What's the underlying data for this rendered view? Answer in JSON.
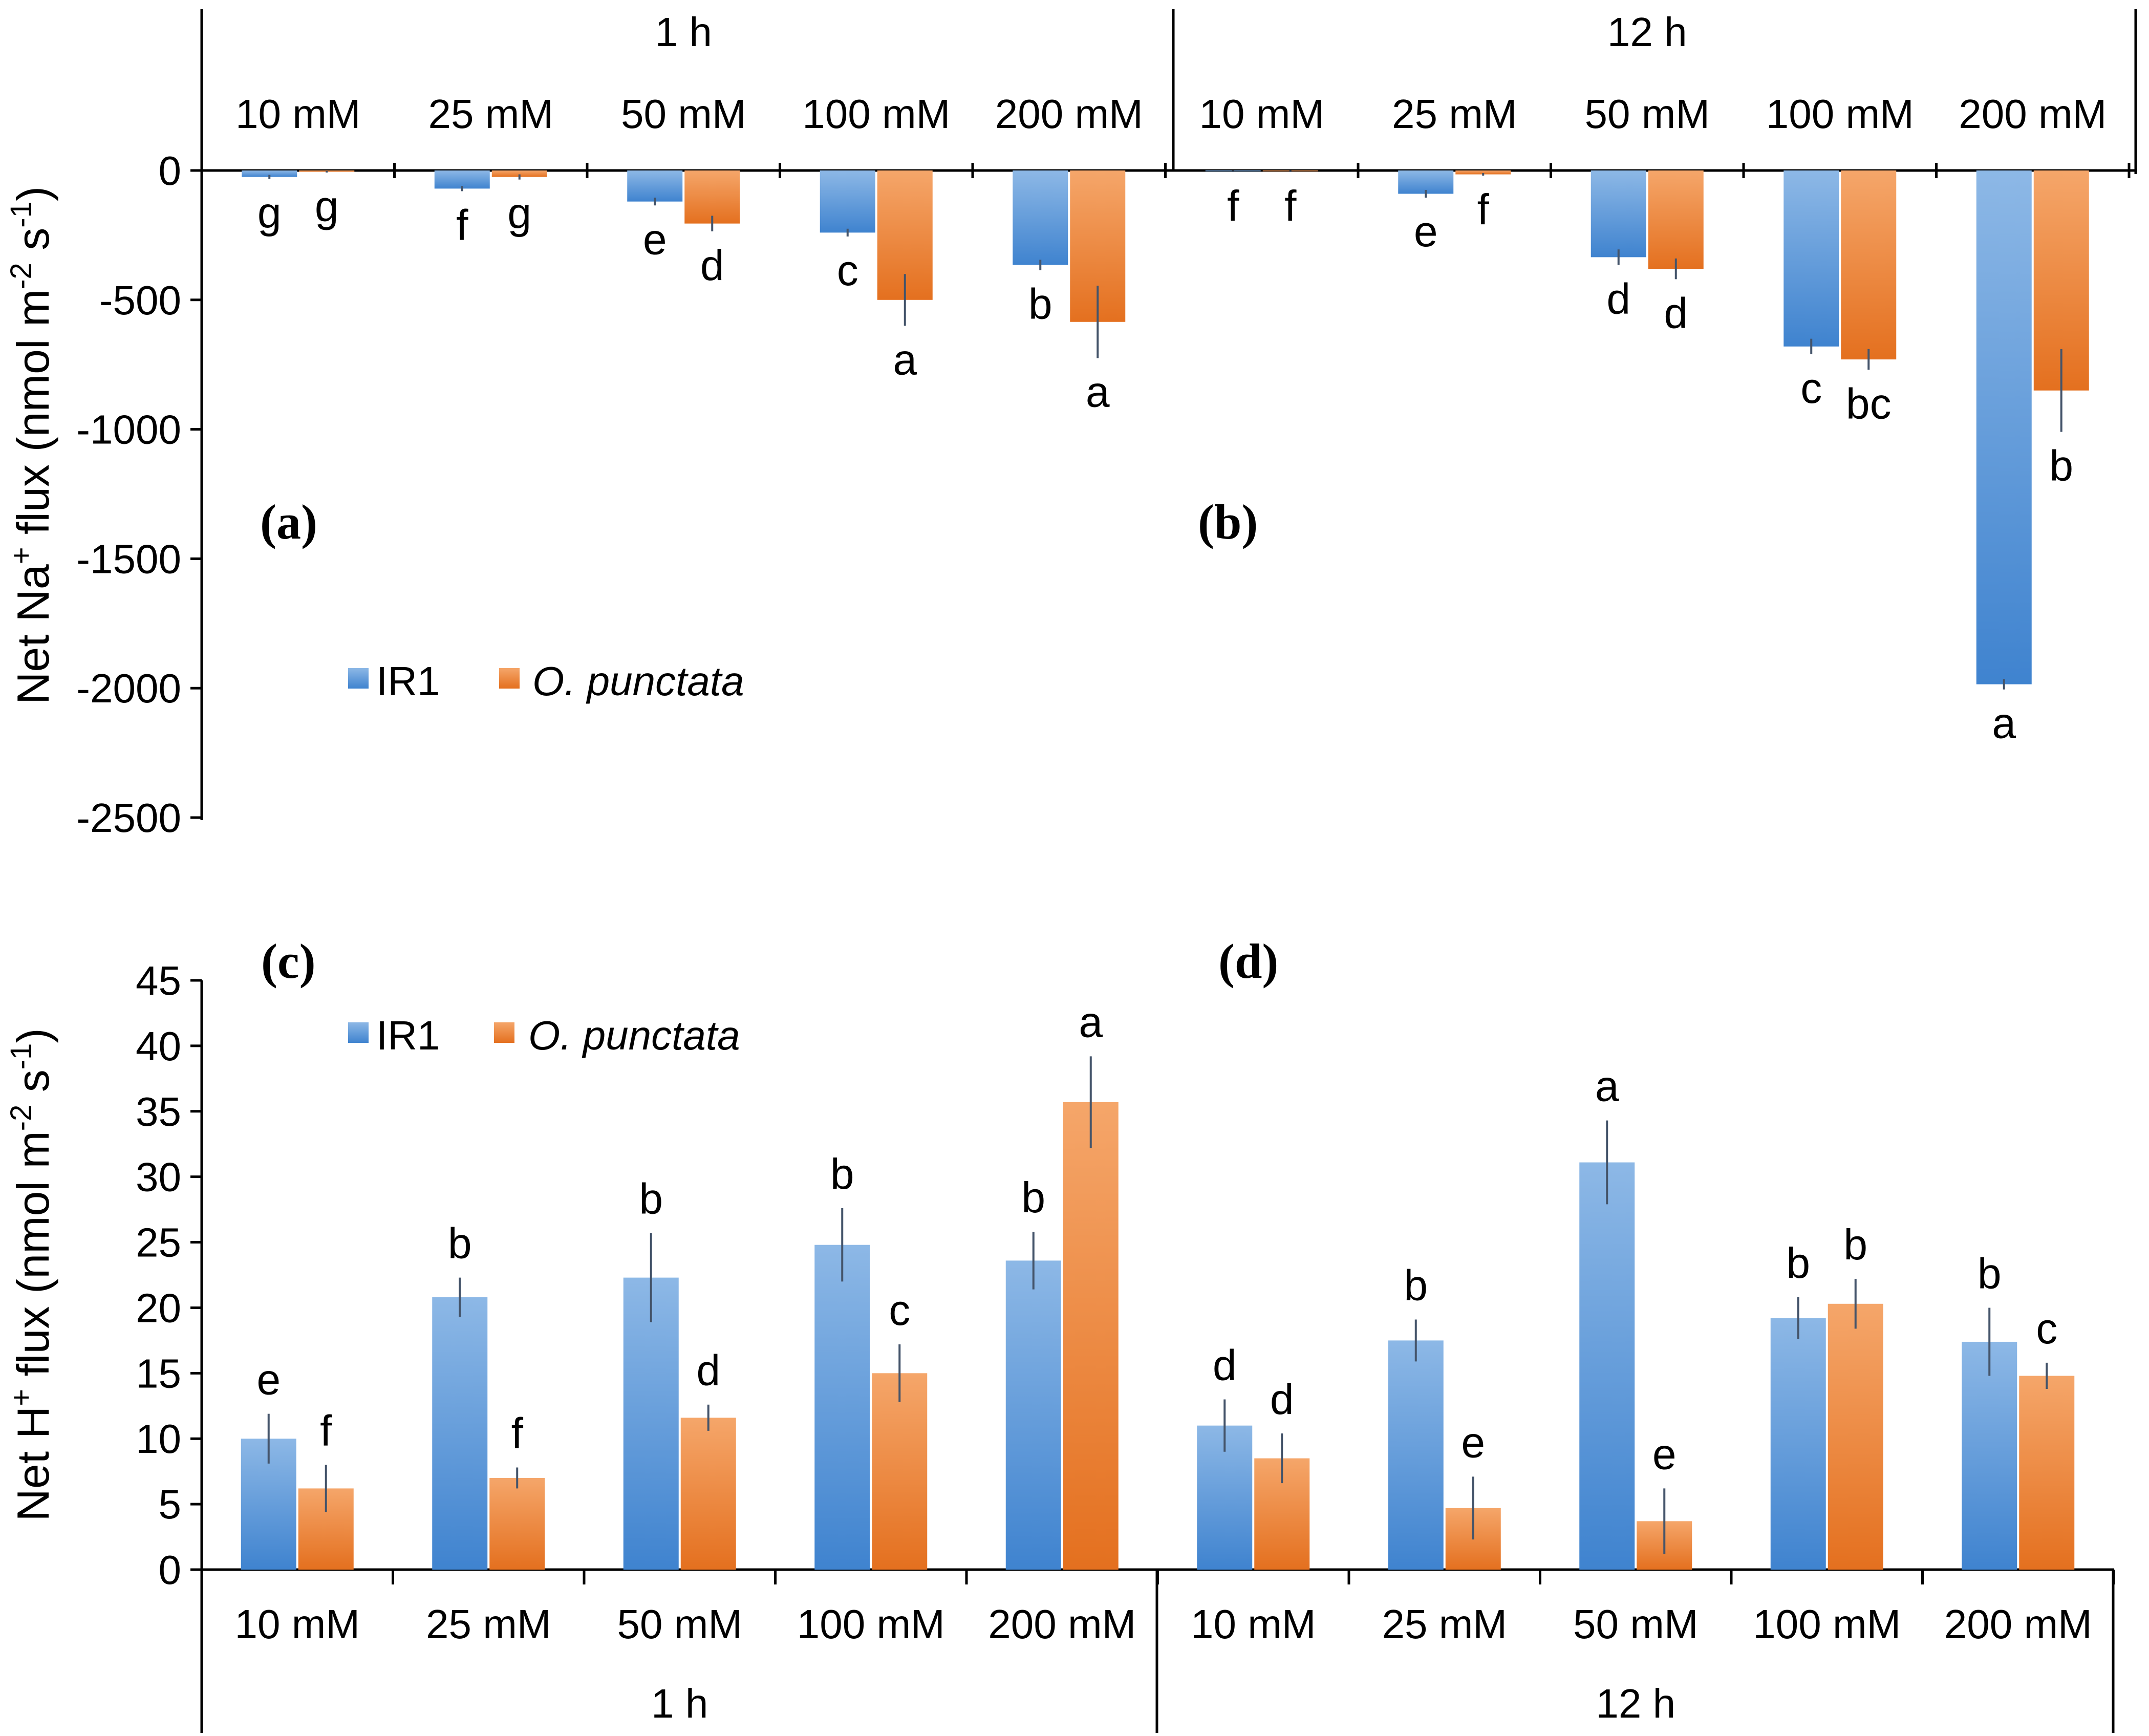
{
  "chart_data": [
    {
      "type": "bar",
      "panel": "top",
      "ylabel": "Net Na⁺ flux (nmol m⁻² s⁻¹)",
      "ylabel_parts": {
        "pre": "Net Na",
        "sup1": "+",
        "mid1": " flux (nmol m",
        "sup2": "-2",
        "mid2": " s",
        "sup3": "-1",
        "post": ")"
      },
      "ylim": [
        -2500,
        0
      ],
      "yticks": [
        0,
        -500,
        -1000,
        -1500,
        -2000,
        -2500
      ],
      "ytick_labels": [
        "0",
        "-500",
        "-1000",
        "-1500",
        "-2000",
        "-2500"
      ],
      "groups": [
        "1 h",
        "12 h"
      ],
      "categories": [
        "10 mM",
        "25 mM",
        "50 mM",
        "100 mM",
        "200 mM",
        "10 mM",
        "25 mM",
        "50 mM",
        "100 mM",
        "200 mM"
      ],
      "panel_labels": [
        "(a)",
        "(b)"
      ],
      "legend": [
        "IR1",
        "O. punctata"
      ],
      "series": [
        {
          "name": "IR1",
          "values": [
            -25,
            -70,
            -120,
            -240,
            -365,
            -3,
            -90,
            -335,
            -680,
            -1985
          ],
          "errors": [
            8,
            10,
            15,
            15,
            20,
            3,
            15,
            30,
            30,
            20
          ],
          "letters": [
            "g",
            "f",
            "e",
            "c",
            "b",
            "f",
            "e",
            "d",
            "c",
            "a"
          ]
        },
        {
          "name": "O. punctata",
          "values": [
            -5,
            -25,
            -205,
            -500,
            -585,
            -3,
            -15,
            -380,
            -730,
            -850
          ],
          "errors": [
            3,
            10,
            30,
            100,
            140,
            3,
            5,
            40,
            40,
            160
          ],
          "letters": [
            "g",
            "g",
            "d",
            "a",
            "a",
            "f",
            "f",
            "d",
            "bc",
            "b"
          ]
        }
      ]
    },
    {
      "type": "bar",
      "panel": "bottom",
      "ylabel": "Net H⁺ flux (nmol m⁻² s⁻¹)",
      "ylabel_parts": {
        "pre": "Net H",
        "sup1": "+",
        "mid1": " flux (nmol m",
        "sup2": "-2",
        "mid2": " s",
        "sup3": "-1",
        "post": ")"
      },
      "ylim": [
        0,
        45
      ],
      "yticks": [
        0,
        5,
        10,
        15,
        20,
        25,
        30,
        35,
        40,
        45
      ],
      "ytick_labels": [
        "0",
        "5",
        "10",
        "15",
        "20",
        "25",
        "30",
        "35",
        "40",
        "45"
      ],
      "groups": [
        "1 h",
        "12 h"
      ],
      "categories": [
        "10 mM",
        "25 mM",
        "50 mM",
        "100 mM",
        "200 mM",
        "10 mM",
        "25 mM",
        "50 mM",
        "100 mM",
        "200 mM"
      ],
      "panel_labels": [
        "(c)",
        "(d)"
      ],
      "legend": [
        "IR1",
        "O. punctata"
      ],
      "series": [
        {
          "name": "IR1",
          "values": [
            10,
            20.8,
            22.3,
            24.8,
            23.6,
            11,
            17.5,
            31.1,
            19.2,
            17.4
          ],
          "errors": [
            1.9,
            1.5,
            3.4,
            2.8,
            2.2,
            2.0,
            1.6,
            3.2,
            1.6,
            2.6
          ],
          "letters": [
            "e",
            "b",
            "b",
            "b",
            "b",
            "d",
            "b",
            "a",
            "b",
            "b"
          ]
        },
        {
          "name": "O. punctata",
          "values": [
            6.2,
            7,
            11.6,
            15,
            35.7,
            8.5,
            4.7,
            3.7,
            20.3,
            14.8
          ],
          "errors": [
            1.8,
            0.8,
            1.0,
            2.2,
            3.5,
            1.9,
            2.4,
            2.5,
            1.9,
            1.0
          ],
          "letters": [
            "f",
            "f",
            "d",
            "c",
            "a",
            "d",
            "e",
            "e",
            "b",
            "c"
          ]
        }
      ]
    }
  ],
  "colors": {
    "ir1_light": "#8db8e6",
    "ir1_dark": "#3f83cf",
    "punctata_light": "#f5a66a",
    "punctata_dark": "#e4701f",
    "axis": "#000000",
    "error_bar": "#44546a"
  }
}
